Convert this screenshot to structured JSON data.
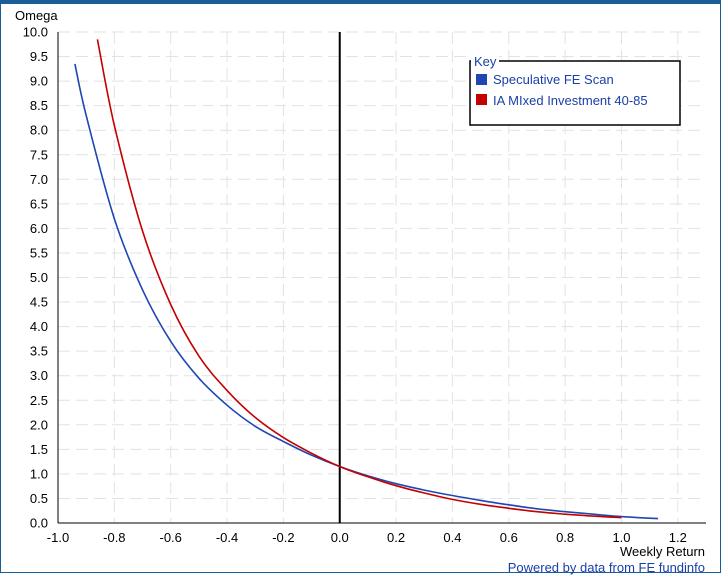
{
  "chart_data": {
    "type": "line",
    "title": "",
    "xlabel": "Weekly Return",
    "ylabel": "Omega",
    "xlim": [
      -1.0,
      1.3
    ],
    "ylim": [
      0.0,
      10.0
    ],
    "x_ticks": [
      "-1.0",
      "-0.8",
      "-0.6",
      "-0.4",
      "-0.2",
      "0.0",
      "0.2",
      "0.4",
      "0.6",
      "0.8",
      "1.0",
      "1.2"
    ],
    "y_ticks": [
      "0.0",
      "0.5",
      "1.0",
      "1.5",
      "2.0",
      "2.5",
      "3.0",
      "3.5",
      "4.0",
      "4.5",
      "5.0",
      "5.5",
      "6.0",
      "6.5",
      "7.0",
      "7.5",
      "8.0",
      "8.5",
      "9.0",
      "9.5",
      "10.0"
    ],
    "grid": true,
    "legend": {
      "title": "Key",
      "position": "top-right"
    },
    "series": [
      {
        "name": "Speculative FE Scan",
        "color": "#1f47b2",
        "x": [
          -0.94,
          -0.9,
          -0.8,
          -0.7,
          -0.6,
          -0.5,
          -0.4,
          -0.3,
          -0.2,
          -0.1,
          0.0,
          0.1,
          0.2,
          0.3,
          0.4,
          0.5,
          0.6,
          0.7,
          0.8,
          0.9,
          1.0,
          1.13
        ],
        "y": [
          9.35,
          8.3,
          6.2,
          4.75,
          3.7,
          2.95,
          2.4,
          1.97,
          1.66,
          1.38,
          1.15,
          0.96,
          0.8,
          0.67,
          0.56,
          0.46,
          0.37,
          0.29,
          0.23,
          0.18,
          0.13,
          0.09
        ]
      },
      {
        "name": "IA MIxed Investment 40-85",
        "color": "#c40000",
        "x": [
          -0.86,
          -0.8,
          -0.7,
          -0.6,
          -0.5,
          -0.4,
          -0.3,
          -0.2,
          -0.1,
          0.0,
          0.1,
          0.2,
          0.3,
          0.4,
          0.5,
          0.6,
          0.7,
          0.8,
          0.9,
          1.0
        ],
        "y": [
          9.85,
          8.1,
          5.95,
          4.45,
          3.4,
          2.7,
          2.15,
          1.74,
          1.42,
          1.15,
          0.94,
          0.76,
          0.61,
          0.48,
          0.38,
          0.3,
          0.23,
          0.18,
          0.14,
          0.11
        ]
      }
    ]
  },
  "footer": {
    "credit": "Powered by data from FE fundinfo"
  }
}
